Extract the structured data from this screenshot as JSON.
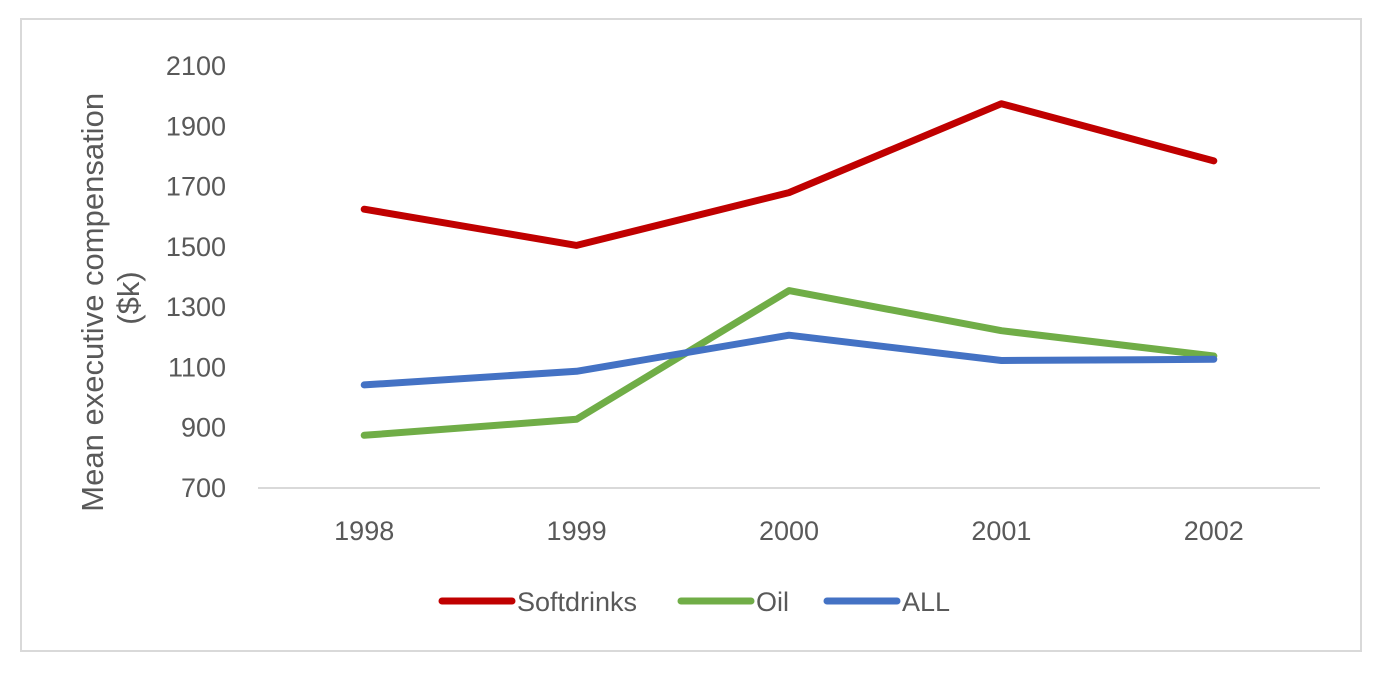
{
  "chart_data": {
    "type": "line",
    "title": "",
    "xlabel": "",
    "ylabel": [
      "Mean executive compensation",
      "($k)"
    ],
    "categories": [
      "1998",
      "1999",
      "2000",
      "2001",
      "2002"
    ],
    "ylim": [
      700,
      2100
    ],
    "yticks": [
      700,
      900,
      1100,
      1300,
      1500,
      1700,
      1900,
      2100
    ],
    "grid": false,
    "legend_position": "bottom",
    "series": [
      {
        "name": "Softdrinks",
        "color": "#C00000",
        "values": [
          1625,
          1505,
          1680,
          1975,
          1785
        ]
      },
      {
        "name": "Oil",
        "color": "#70AD47",
        "values": [
          875,
          928,
          1355,
          1222,
          1138
        ]
      },
      {
        "name": "ALL",
        "color": "#4472C4",
        "values": [
          1042,
          1087,
          1207,
          1123,
          1127
        ]
      }
    ]
  }
}
